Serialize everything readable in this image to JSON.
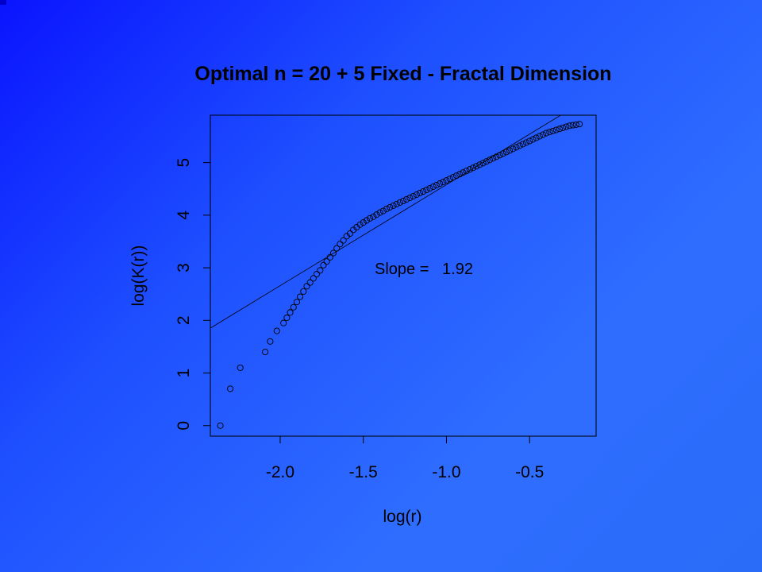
{
  "chart_data": {
    "type": "scatter",
    "title": "Optimal n = 20 + 5 Fixed  - Fractal Dimension",
    "xlabel": "log(r)",
    "ylabel": "log(K(r))",
    "xlim": [
      -2.42,
      -0.1
    ],
    "ylim": [
      -0.2,
      5.9
    ],
    "x_ticks": [
      -2.0,
      -1.5,
      -1.0,
      -0.5
    ],
    "x_tick_labels": [
      "-2.0",
      "-1.5",
      "-1.0",
      "-0.5"
    ],
    "y_ticks": [
      0,
      1,
      2,
      3,
      4,
      5
    ],
    "y_tick_labels": [
      "0",
      "1",
      "2",
      "3",
      "4",
      "5"
    ],
    "grid": false,
    "marker": "open-circle",
    "fit_line": {
      "slope": 1.92,
      "intercept": 6.5
    },
    "annotation": "Slope =   1.92",
    "points": [
      [
        -2.36,
        0.0
      ],
      [
        -2.3,
        0.7
      ],
      [
        -2.24,
        1.1
      ],
      [
        -2.09,
        1.4
      ],
      [
        -2.06,
        1.6
      ],
      [
        -2.02,
        1.8
      ],
      [
        -1.98,
        1.95
      ],
      [
        -1.96,
        2.05
      ],
      [
        -1.94,
        2.15
      ],
      [
        -1.92,
        2.25
      ],
      [
        -1.9,
        2.35
      ],
      [
        -1.88,
        2.45
      ],
      [
        -1.86,
        2.55
      ],
      [
        -1.84,
        2.65
      ],
      [
        -1.82,
        2.72
      ],
      [
        -1.8,
        2.8
      ],
      [
        -1.78,
        2.88
      ],
      [
        -1.76,
        2.95
      ],
      [
        -1.74,
        3.05
      ],
      [
        -1.72,
        3.12
      ],
      [
        -1.7,
        3.2
      ],
      [
        -1.68,
        3.28
      ],
      [
        -1.66,
        3.37
      ],
      [
        -1.64,
        3.45
      ],
      [
        -1.62,
        3.52
      ],
      [
        -1.6,
        3.6
      ],
      [
        -1.58,
        3.65
      ],
      [
        -1.56,
        3.72
      ],
      [
        -1.54,
        3.77
      ],
      [
        -1.52,
        3.82
      ],
      [
        -1.5,
        3.86
      ],
      [
        -1.48,
        3.9
      ],
      [
        -1.46,
        3.94
      ],
      [
        -1.44,
        3.97
      ],
      [
        -1.42,
        4.01
      ],
      [
        -1.4,
        4.05
      ],
      [
        -1.38,
        4.08
      ],
      [
        -1.36,
        4.12
      ],
      [
        -1.34,
        4.15
      ],
      [
        -1.32,
        4.18
      ],
      [
        -1.3,
        4.21
      ],
      [
        -1.28,
        4.24
      ],
      [
        -1.26,
        4.27
      ],
      [
        -1.24,
        4.3
      ],
      [
        -1.22,
        4.33
      ],
      [
        -1.2,
        4.36
      ],
      [
        -1.18,
        4.39
      ],
      [
        -1.16,
        4.42
      ],
      [
        -1.14,
        4.45
      ],
      [
        -1.12,
        4.48
      ],
      [
        -1.1,
        4.51
      ],
      [
        -1.08,
        4.54
      ],
      [
        -1.06,
        4.57
      ],
      [
        -1.04,
        4.6
      ],
      [
        -1.02,
        4.63
      ],
      [
        -1.0,
        4.66
      ],
      [
        -0.98,
        4.69
      ],
      [
        -0.96,
        4.72
      ],
      [
        -0.94,
        4.75
      ],
      [
        -0.92,
        4.78
      ],
      [
        -0.9,
        4.81
      ],
      [
        -0.88,
        4.84
      ],
      [
        -0.86,
        4.87
      ],
      [
        -0.84,
        4.9
      ],
      [
        -0.82,
        4.93
      ],
      [
        -0.8,
        4.96
      ],
      [
        -0.78,
        4.99
      ],
      [
        -0.76,
        5.02
      ],
      [
        -0.74,
        5.05
      ],
      [
        -0.72,
        5.08
      ],
      [
        -0.7,
        5.11
      ],
      [
        -0.68,
        5.14
      ],
      [
        -0.66,
        5.17
      ],
      [
        -0.64,
        5.2
      ],
      [
        -0.62,
        5.23
      ],
      [
        -0.6,
        5.26
      ],
      [
        -0.58,
        5.29
      ],
      [
        -0.56,
        5.32
      ],
      [
        -0.54,
        5.35
      ],
      [
        -0.52,
        5.38
      ],
      [
        -0.5,
        5.41
      ],
      [
        -0.48,
        5.44
      ],
      [
        -0.46,
        5.47
      ],
      [
        -0.44,
        5.5
      ],
      [
        -0.42,
        5.53
      ],
      [
        -0.4,
        5.56
      ],
      [
        -0.38,
        5.58
      ],
      [
        -0.36,
        5.6
      ],
      [
        -0.34,
        5.62
      ],
      [
        -0.32,
        5.64
      ],
      [
        -0.3,
        5.66
      ],
      [
        -0.28,
        5.68
      ],
      [
        -0.26,
        5.7
      ],
      [
        -0.24,
        5.71
      ],
      [
        -0.22,
        5.72
      ],
      [
        -0.2,
        5.73
      ]
    ],
    "colors": {
      "ink": "#000000",
      "background_start": "#0a14ff",
      "background_end": "#2a6cf8"
    }
  }
}
